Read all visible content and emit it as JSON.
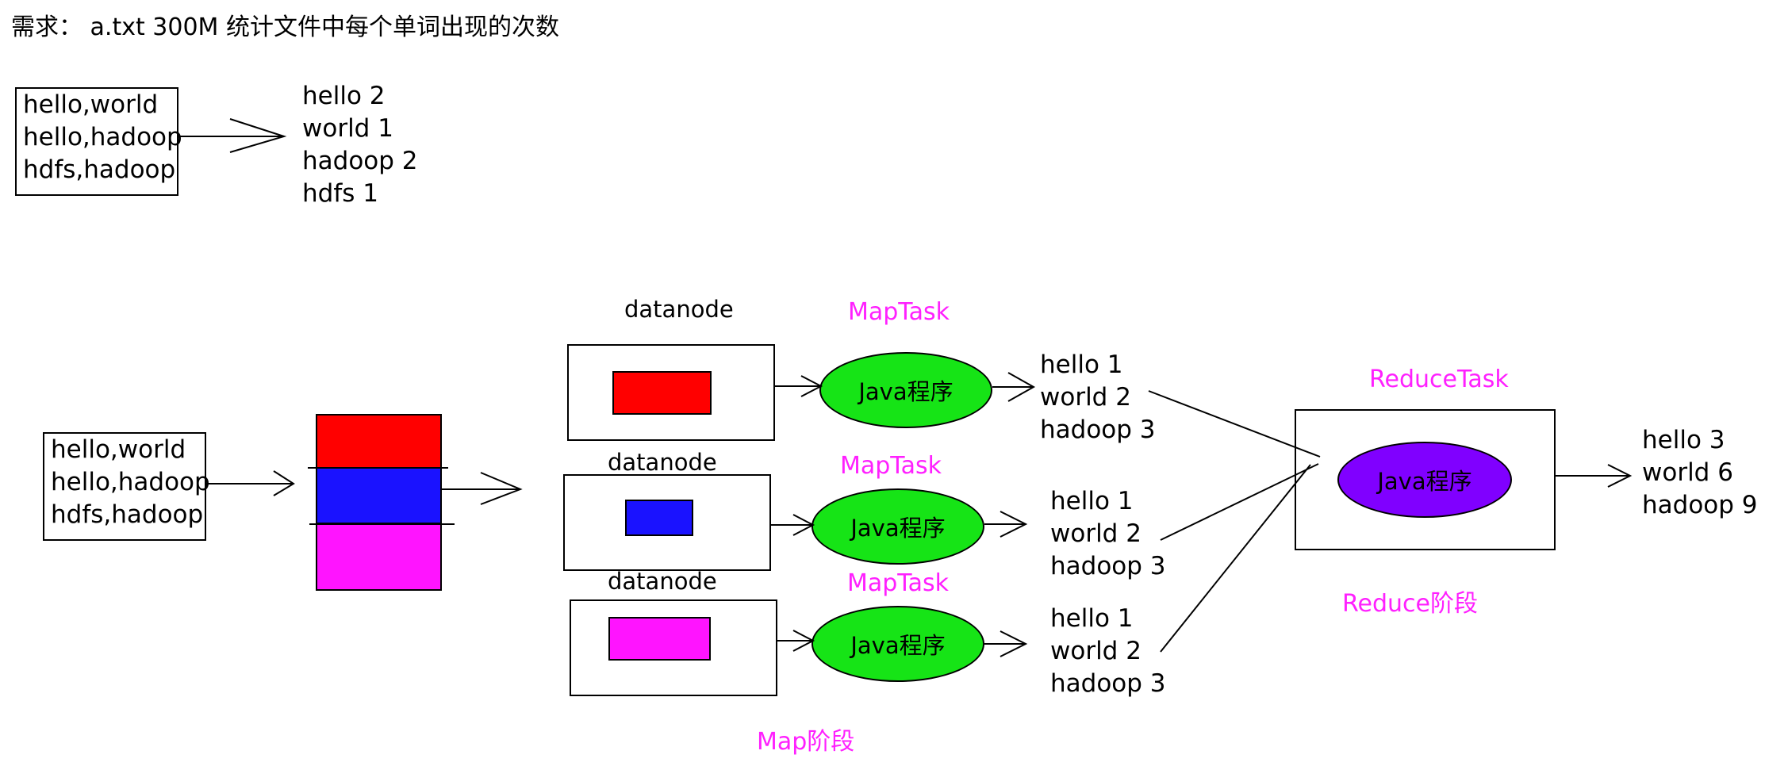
{
  "title": "需求： a.txt  300M 统计文件中每个单词出现的次数",
  "top_input": [
    "hello,world",
    "hello,hadoop",
    "hdfs,hadoop"
  ],
  "top_output": [
    "hello 2",
    "world 1",
    "hadoop 2",
    "hdfs  1"
  ],
  "main_input": [
    "hello,world",
    "hello,hadoop",
    "hdfs,hadoop"
  ],
  "blocks": [
    {
      "color": "#ff0000"
    },
    {
      "color": "#1a12ff"
    },
    {
      "color": "#ff14ff"
    }
  ],
  "datanode_label": "datanode",
  "maptask_label": "MapTask",
  "java_program_label": "Java程序",
  "map_outputs": [
    [
      "hello  1",
      "world  2",
      "hadoop 3"
    ],
    [
      "hello  1",
      "world  2",
      "hadoop 3"
    ],
    [
      "hello  1",
      "world  2",
      "hadoop 3"
    ]
  ],
  "reducetask_label": "ReduceTask",
  "reduce_output": [
    "hello 3",
    "world 6",
    "hadoop 9"
  ],
  "map_phase_label": "Map阶段",
  "reduce_phase_label": "Reduce阶段",
  "colors": {
    "map_oval": "#16e416",
    "reduce_oval": "#8000ff",
    "label_magenta": "#ff20ff"
  }
}
